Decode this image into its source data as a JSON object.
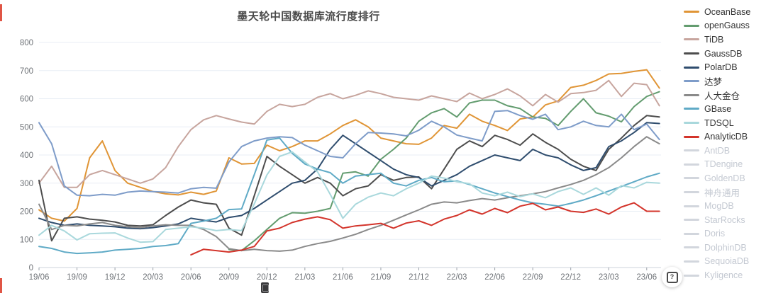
{
  "page": {
    "background": "#ffffff"
  },
  "help_button": {
    "glyph": "?"
  },
  "colors": {
    "title": "#4a4a4a",
    "axis_label": "#6e7277",
    "grid_line": "#e8eef5",
    "axis_line": "#ccd3db",
    "inactive_swatch": "#d2d6dd",
    "inactive_text": "#c4c9d2"
  },
  "chart_data": {
    "type": "line",
    "title": "墨天轮中国数据库流行度排行",
    "xlabel": "",
    "ylabel": "",
    "ylim": [
      0,
      800
    ],
    "y_ticks": [
      0,
      100,
      200,
      300,
      400,
      500,
      600,
      700,
      800
    ],
    "grid": "horizontal-only",
    "legend_position": "right",
    "x_tick_labels": [
      "19/06",
      "19/09",
      "19/12",
      "20/03",
      "20/06",
      "20/09",
      "20/12",
      "21/03",
      "21/06",
      "21/09",
      "21/12",
      "22/03",
      "22/06",
      "22/09",
      "22/12",
      "23/03",
      "23/06"
    ],
    "x_labels": [
      "19/06",
      "19/07",
      "19/08",
      "19/09",
      "19/10",
      "19/11",
      "19/12",
      "20/01",
      "20/02",
      "20/03",
      "20/04",
      "20/05",
      "20/06",
      "20/07",
      "20/08",
      "20/09",
      "20/10",
      "20/11",
      "20/12",
      "21/01",
      "21/02",
      "21/03",
      "21/04",
      "21/05",
      "21/06",
      "21/07",
      "21/08",
      "21/09",
      "21/10",
      "21/11",
      "21/12",
      "22/01",
      "22/02",
      "22/03",
      "22/04",
      "22/05",
      "22/06",
      "22/07",
      "22/08",
      "22/09",
      "22/10",
      "22/11",
      "22/12",
      "23/01",
      "23/02",
      "23/03",
      "23/04",
      "23/05",
      "23/06",
      "23/07"
    ],
    "series": [
      {
        "name": "OceanBase",
        "color": "#e09536",
        "active": true,
        "values": [
          205,
          175,
          165,
          210,
          390,
          450,
          345,
          300,
          285,
          270,
          262,
          258,
          268,
          260,
          272,
          390,
          368,
          370,
          435,
          415,
          430,
          450,
          450,
          475,
          505,
          525,
          500,
          460,
          450,
          440,
          438,
          460,
          505,
          495,
          545,
          520,
          505,
          487,
          528,
          535,
          578,
          592,
          640,
          648,
          665,
          688,
          690,
          697,
          703,
          638
        ]
      },
      {
        "name": "openGauss",
        "color": "#639c6f",
        "active": true,
        "values": [
          null,
          null,
          null,
          null,
          null,
          null,
          null,
          null,
          null,
          null,
          null,
          null,
          null,
          null,
          null,
          64,
          60,
          95,
          135,
          175,
          195,
          193,
          200,
          210,
          335,
          340,
          325,
          385,
          420,
          460,
          520,
          550,
          565,
          535,
          585,
          595,
          595,
          575,
          565,
          535,
          530,
          505,
          555,
          600,
          550,
          538,
          518,
          572,
          608,
          625
        ]
      },
      {
        "name": "TiDB",
        "color": "#c7a59e",
        "active": true,
        "values": [
          300,
          360,
          285,
          285,
          330,
          345,
          330,
          315,
          300,
          315,
          355,
          430,
          490,
          525,
          540,
          528,
          517,
          510,
          555,
          580,
          572,
          580,
          605,
          618,
          600,
          612,
          628,
          618,
          605,
          600,
          595,
          610,
          600,
          590,
          620,
          600,
          615,
          635,
          610,
          575,
          615,
          588,
          618,
          622,
          630,
          665,
          608,
          655,
          650,
          575
        ]
      },
      {
        "name": "GaussDB",
        "color": "#4d4d4d",
        "active": true,
        "values": [
          310,
          95,
          175,
          180,
          172,
          168,
          162,
          150,
          148,
          152,
          185,
          215,
          240,
          230,
          225,
          140,
          115,
          255,
          395,
          360,
          330,
          300,
          320,
          300,
          255,
          280,
          290,
          330,
          310,
          320,
          322,
          280,
          350,
          420,
          450,
          430,
          470,
          455,
          435,
          475,
          445,
          420,
          385,
          360,
          345,
          420,
          460,
          505,
          540,
          535
        ]
      },
      {
        "name": "PolarDB",
        "color": "#2f4d6e",
        "active": true,
        "values": [
          175,
          160,
          150,
          155,
          150,
          148,
          145,
          140,
          138,
          142,
          148,
          155,
          175,
          168,
          162,
          178,
          185,
          210,
          240,
          270,
          300,
          310,
          350,
          420,
          470,
          440,
          410,
          380,
          350,
          330,
          320,
          290,
          310,
          330,
          360,
          380,
          400,
          390,
          380,
          420,
          400,
          390,
          365,
          345,
          355,
          430,
          450,
          480,
          515,
          512
        ]
      },
      {
        "name": "达梦",
        "color": "#7e9cc9",
        "active": true,
        "values": [
          515,
          440,
          290,
          257,
          255,
          260,
          257,
          268,
          272,
          270,
          268,
          265,
          280,
          285,
          282,
          375,
          430,
          450,
          460,
          465,
          462,
          435,
          415,
          395,
          390,
          440,
          480,
          478,
          475,
          468,
          488,
          520,
          500,
          471,
          460,
          450,
          555,
          558,
          540,
          527,
          545,
          490,
          500,
          520,
          505,
          500,
          545,
          490,
          510,
          455
        ]
      },
      {
        "name": "人大金仓",
        "color": "#8a8a8a",
        "active": true,
        "values": [
          225,
          135,
          150,
          148,
          155,
          160,
          150,
          145,
          142,
          148,
          152,
          150,
          150,
          135,
          110,
          67,
          60,
          65,
          60,
          58,
          62,
          75,
          85,
          93,
          105,
          118,
          135,
          150,
          168,
          187,
          205,
          225,
          233,
          230,
          238,
          245,
          240,
          248,
          255,
          262,
          270,
          283,
          295,
          310,
          330,
          355,
          390,
          430,
          465,
          440
        ]
      },
      {
        "name": "GBase",
        "color": "#5faac6",
        "active": true,
        "values": [
          75,
          68,
          55,
          50,
          52,
          55,
          62,
          65,
          68,
          75,
          78,
          85,
          157,
          165,
          175,
          206,
          208,
          330,
          453,
          460,
          406,
          368,
          350,
          337,
          300,
          325,
          330,
          335,
          300,
          290,
          310,
          320,
          305,
          308,
          295,
          280,
          265,
          252,
          240,
          230,
          225,
          218,
          228,
          240,
          255,
          272,
          288,
          305,
          322,
          335
        ]
      },
      {
        "name": "TDSQL",
        "color": "#a9d8dc",
        "active": true,
        "values": [
          115,
          150,
          130,
          98,
          120,
          122,
          123,
          105,
          90,
          92,
          135,
          140,
          145,
          140,
          131,
          135,
          131,
          226,
          329,
          395,
          411,
          375,
          340,
          260,
          175,
          225,
          250,
          265,
          255,
          280,
          300,
          325,
          318,
          305,
          298,
          265,
          255,
          268,
          252,
          262,
          248,
          270,
          283,
          260,
          283,
          257,
          291,
          283,
          303,
          300
        ]
      },
      {
        "name": "AnalyticDB",
        "color": "#d3342b",
        "active": true,
        "values": [
          null,
          null,
          null,
          null,
          null,
          null,
          null,
          null,
          null,
          null,
          null,
          null,
          45,
          65,
          60,
          55,
          62,
          75,
          130,
          140,
          160,
          172,
          180,
          170,
          140,
          148,
          152,
          157,
          140,
          158,
          166,
          150,
          172,
          185,
          205,
          190,
          210,
          195,
          218,
          228,
          205,
          215,
          200,
          196,
          208,
          190,
          215,
          230,
          200,
          200
        ]
      },
      {
        "name": "AntDB",
        "color": "#d2d6dd",
        "active": false,
        "values": null
      },
      {
        "name": "TDengine",
        "color": "#d2d6dd",
        "active": false,
        "values": null
      },
      {
        "name": "GoldenDB",
        "color": "#d2d6dd",
        "active": false,
        "values": null
      },
      {
        "name": "神舟通用",
        "color": "#d2d6dd",
        "active": false,
        "values": null
      },
      {
        "name": "MogDB",
        "color": "#d2d6dd",
        "active": false,
        "values": null
      },
      {
        "name": "StarRocks",
        "color": "#d2d6dd",
        "active": false,
        "values": null
      },
      {
        "name": "Doris",
        "color": "#d2d6dd",
        "active": false,
        "values": null
      },
      {
        "name": "DolphinDB",
        "color": "#d2d6dd",
        "active": false,
        "values": null
      },
      {
        "name": "SequoiaDB",
        "color": "#d2d6dd",
        "active": false,
        "values": null
      },
      {
        "name": "Kyligence",
        "color": "#d2d6dd",
        "active": false,
        "values": null
      }
    ]
  }
}
